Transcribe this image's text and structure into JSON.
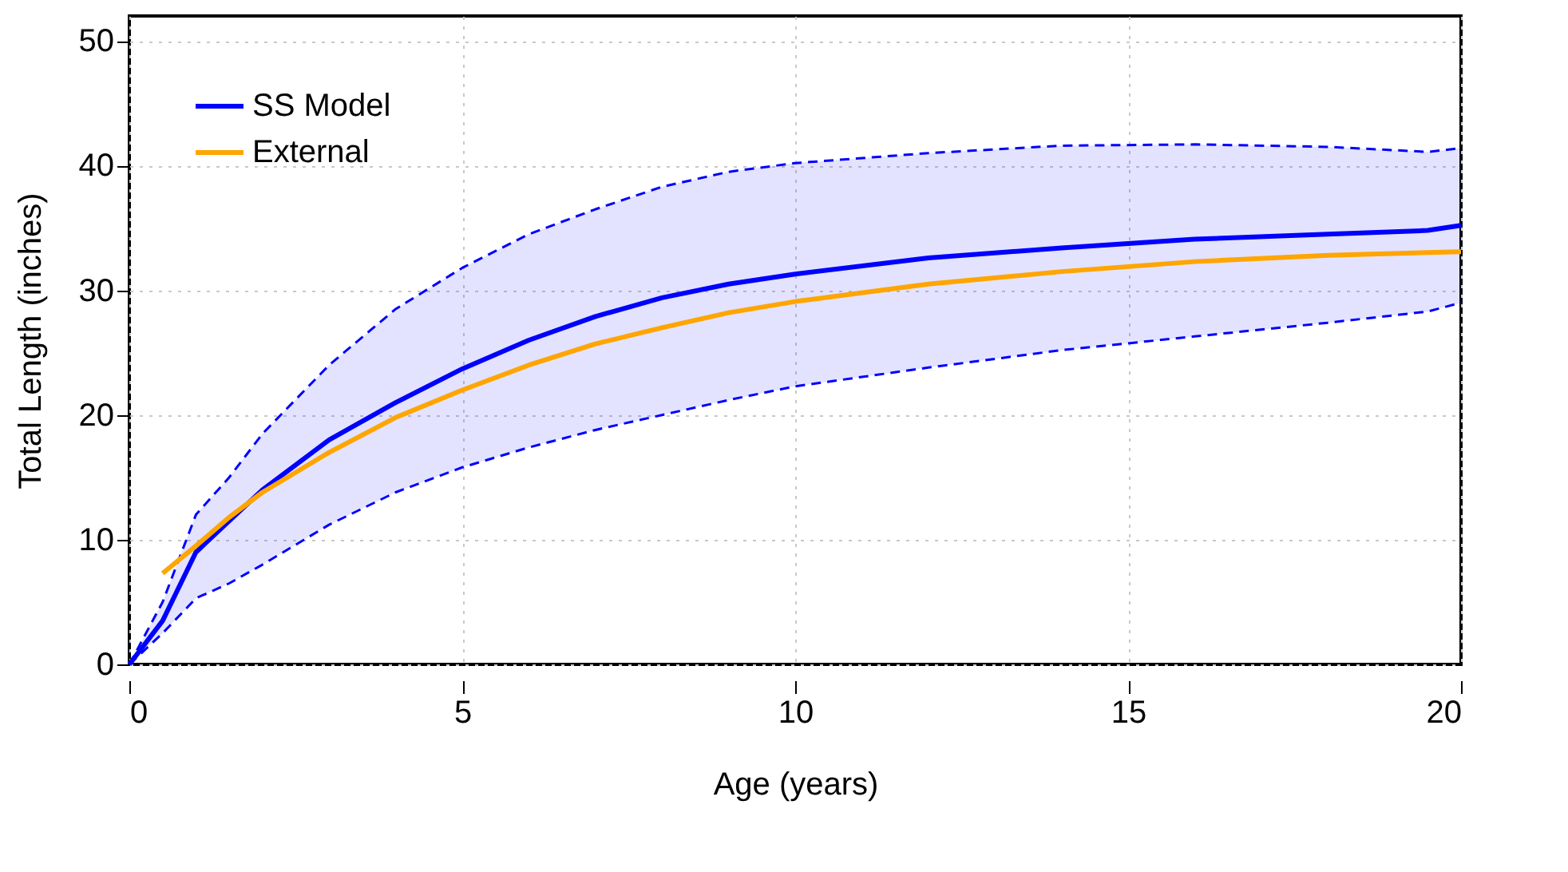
{
  "chart_data": {
    "type": "line",
    "xlabel": "Age (years)",
    "ylabel": "Total Length (inches)",
    "xlim": [
      0,
      20
    ],
    "xticks": [
      0,
      5,
      10,
      15,
      20
    ],
    "ylim": [
      0,
      52
    ],
    "yticks": [
      0,
      10,
      20,
      30,
      40,
      50
    ],
    "grid": true,
    "legend": "top left",
    "line_style": "solid",
    "marker": "none",
    "series": [
      {
        "name": "SS Model",
        "color": "#0000ff",
        "x": [
          0,
          0.5,
          1,
          1.5,
          2,
          3,
          4,
          5,
          6,
          7,
          8,
          9,
          10,
          12,
          14,
          16,
          18,
          19.5,
          20
        ],
        "values": [
          0,
          3.5,
          9,
          11.5,
          14,
          18,
          21,
          23.7,
          26,
          27.9,
          29.4,
          30.5,
          31.3,
          32.6,
          33.4,
          34.1,
          34.5,
          34.8,
          35.2
        ],
        "lower": [
          0,
          2.5,
          5.3,
          6.5,
          8,
          11.2,
          13.8,
          15.8,
          17.4,
          18.8,
          20,
          21.2,
          22.3,
          23.8,
          25.2,
          26.3,
          27.4,
          28.3,
          29
        ],
        "upper": [
          0,
          5,
          12,
          15,
          18.5,
          24,
          28.5,
          31.8,
          34.5,
          36.5,
          38.3,
          39.5,
          40.2,
          41,
          41.6,
          41.7,
          41.5,
          41.1,
          41.4
        ]
      },
      {
        "color": "#0000ff",
        "line_style": "dashed",
        "x": [
          0,
          0.5,
          1,
          1.5,
          2,
          3,
          4,
          5,
          6,
          7,
          8,
          9,
          10,
          12,
          14,
          16,
          18,
          19.5,
          20
        ],
        "values": [
          0,
          2.5,
          5.3,
          6.5,
          8,
          11.2,
          13.8,
          15.8,
          17.4,
          18.8,
          20,
          21.2,
          22.3,
          23.8,
          25.2,
          26.3,
          27.4,
          28.3,
          29
        ]
      },
      {
        "color": "#0000ff",
        "line_style": "dashed",
        "x": [
          0,
          0.5,
          1,
          1.5,
          2,
          3,
          4,
          5,
          6,
          7,
          8,
          9,
          10,
          12,
          14,
          16,
          18,
          19.5,
          20
        ],
        "values": [
          0,
          5,
          12,
          15,
          18.5,
          24,
          28.5,
          31.8,
          34.5,
          36.5,
          38.3,
          39.5,
          40.2,
          41,
          41.6,
          41.7,
          41.5,
          41.1,
          41.4
        ]
      },
      {
        "name": "External",
        "color": "#ffa500",
        "x": [
          0.5,
          1,
          1.5,
          2,
          3,
          4,
          5,
          6,
          7,
          8,
          9,
          10,
          12,
          14,
          16,
          18,
          20
        ],
        "values": [
          7.3,
          9.5,
          11.8,
          13.8,
          17,
          19.8,
          22,
          24,
          25.7,
          27,
          28.2,
          29.1,
          30.5,
          31.5,
          32.3,
          32.8,
          33.1
        ]
      }
    ]
  }
}
